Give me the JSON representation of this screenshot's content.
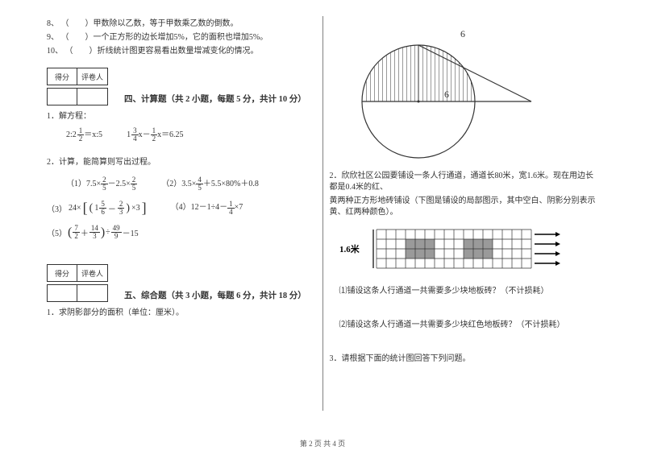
{
  "left": {
    "tf": [
      {
        "num": "8、",
        "text": "（　　）甲数除以乙数，等于甲数乘乙数的倒数。"
      },
      {
        "num": "9、",
        "text": "（　　）一个正方形的边长增加5%，它的面积也增加5%。"
      },
      {
        "num": "10、",
        "text": "（　　）折线统计图更容易看出数量增减变化的情况。"
      }
    ],
    "score_labels": {
      "a": "得分",
      "b": "评卷人"
    },
    "section4": "四、计算题（共 2 小题，每题 5 分，共计 10 分）",
    "q4_1_label": "1．解方程：",
    "q4_1_expr1_a": "2:",
    "q4_1_expr1_b": "2",
    "q4_1_expr1_c": "1",
    "q4_1_expr1_d": "2",
    "q4_1_expr1_e": "＝x:5",
    "q4_1_expr2_a": "1",
    "q4_1_expr2_b": "3",
    "q4_1_expr2_c": "4",
    "q4_1_expr2_d": "x－",
    "q4_1_expr2_e": "1",
    "q4_1_expr2_f": "2",
    "q4_1_expr2_g": "x＝6.25",
    "q4_2_label": "2．计算，能简算则写出过程。",
    "p1_pre": "（1）7.5×",
    "p1_fr_n": "2",
    "p1_fr_d": "5",
    "p1_mid": "－2.5×",
    "p1_fr2_n": "2",
    "p1_fr2_d": "5",
    "p2_pre": "（2）",
    "p2_a": "3.5×",
    "p2_fr_n": "4",
    "p2_fr_d": "5",
    "p2_b": "＋5.5×80%＋0.8",
    "p3_pre": "24×",
    "p3_lb": "[(",
    "p3_m1": "1",
    "p3_m1n": "5",
    "p3_m1d": "6",
    "p3_mid": "－",
    "p3_f2n": "2",
    "p3_f2d": "3",
    "p3_rb": ")×3]",
    "p4_pre": "（4）12－1÷4－",
    "p4_fn": "1",
    "p4_fd": "4",
    "p4_suf": "×7",
    "p5_pre": "（5）",
    "p5_lp": "(",
    "p5_f1n": "7",
    "p5_f1d": "2",
    "p5_pl": "＋",
    "p5_f2n": "14",
    "p5_f2d": "3",
    "p5_rp": ")",
    "p5_div": "÷",
    "p5_f3n": "49",
    "p5_f3d": "9",
    "p5_suf": "－15",
    "p3num": "（3）",
    "section5": "五、综合题（共 3 小题，每题 6 分，共计 18 分）",
    "q5_1": "1．求阴影部分的面积（单位：厘米）。"
  },
  "right": {
    "circle_fig": {
      "top_label": "6",
      "radius_label": "6",
      "colors": {
        "stroke": "#333333",
        "fill": "#ffffff",
        "hatch": "#333333"
      }
    },
    "q2_text_a": "2．欣欣社区公园要铺设一条人行通道，通道长80米，宽1.6米。现在用边长都是0.4米的红、",
    "q2_text_b": "黄两种正方形地砖铺设（下图是铺设的局部图示，其中空白、阴影分别表示黄、红两种颜色）。",
    "tile_fig": {
      "label": "1.6米",
      "rows": 4,
      "cols": 16,
      "cell": 12,
      "colors": {
        "grid": "#333",
        "red": "#9a9a9a",
        "bg": "#fff",
        "arrow": "#000"
      }
    },
    "q2_sub1": "⑴铺设这条人行通道一共需要多少块地板砖？（不计损耗）",
    "q2_sub2": "⑵铺设这条人行通道一共需要多少块红色地板砖？（不计损耗）",
    "q3": "3．请根据下面的统计图回答下列问题。"
  },
  "footer": "第 2 页 共 4 页"
}
